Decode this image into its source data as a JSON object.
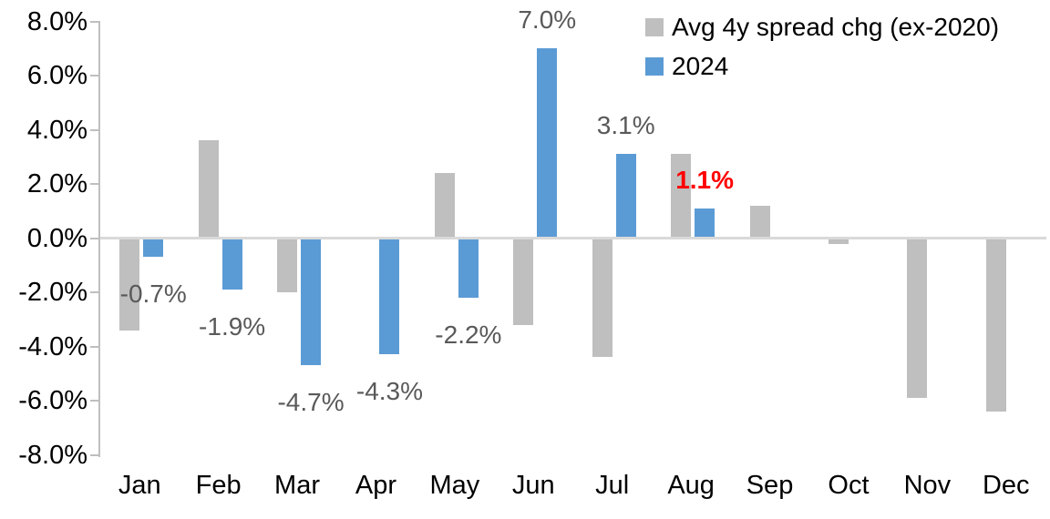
{
  "chart_data": {
    "type": "bar",
    "title": "",
    "xlabel": "",
    "ylabel": "",
    "categories": [
      "Jan",
      "Feb",
      "Mar",
      "Apr",
      "May",
      "Jun",
      "Jul",
      "Aug",
      "Sep",
      "Oct",
      "Nov",
      "Dec"
    ],
    "series": [
      {
        "name": "Avg 4y spread chg (ex-2020)",
        "color": "#BFBFBF",
        "values": [
          -3.4,
          3.6,
          -2.0,
          0.0,
          2.4,
          -3.2,
          -4.4,
          3.1,
          1.2,
          -0.2,
          -5.9,
          -6.4
        ]
      },
      {
        "name": "2024",
        "color": "#5B9BD5",
        "values": [
          -0.7,
          -1.9,
          -4.7,
          -4.3,
          -2.2,
          7.0,
          3.1,
          1.1,
          null,
          null,
          null,
          null
        ],
        "data_labels": [
          {
            "text": "-0.7%"
          },
          {
            "text": "-1.9%"
          },
          {
            "text": "-4.7%"
          },
          {
            "text": "-4.3%"
          },
          {
            "text": "-2.2%"
          },
          {
            "text": "7.0%"
          },
          {
            "text": "3.1%"
          },
          {
            "text": "1.1%",
            "color": "#FF0000",
            "bold": true
          },
          null,
          null,
          null,
          null
        ]
      }
    ],
    "y_axis": {
      "min": -8,
      "max": 8,
      "step": 2,
      "tick_labels": [
        "8.0%",
        "6.0%",
        "4.0%",
        "2.0%",
        "0.0%",
        "-2.0%",
        "-4.0%",
        "-6.0%",
        "-8.0%"
      ]
    },
    "legend_position": "top-right",
    "grid": false,
    "styles": {
      "data_label_color": "#595959",
      "axis_text_color": "#000000",
      "axis_line_color": "#BFBFBF",
      "zero_line_color": "#D9D9D9",
      "background": "#FFFFFF"
    }
  }
}
